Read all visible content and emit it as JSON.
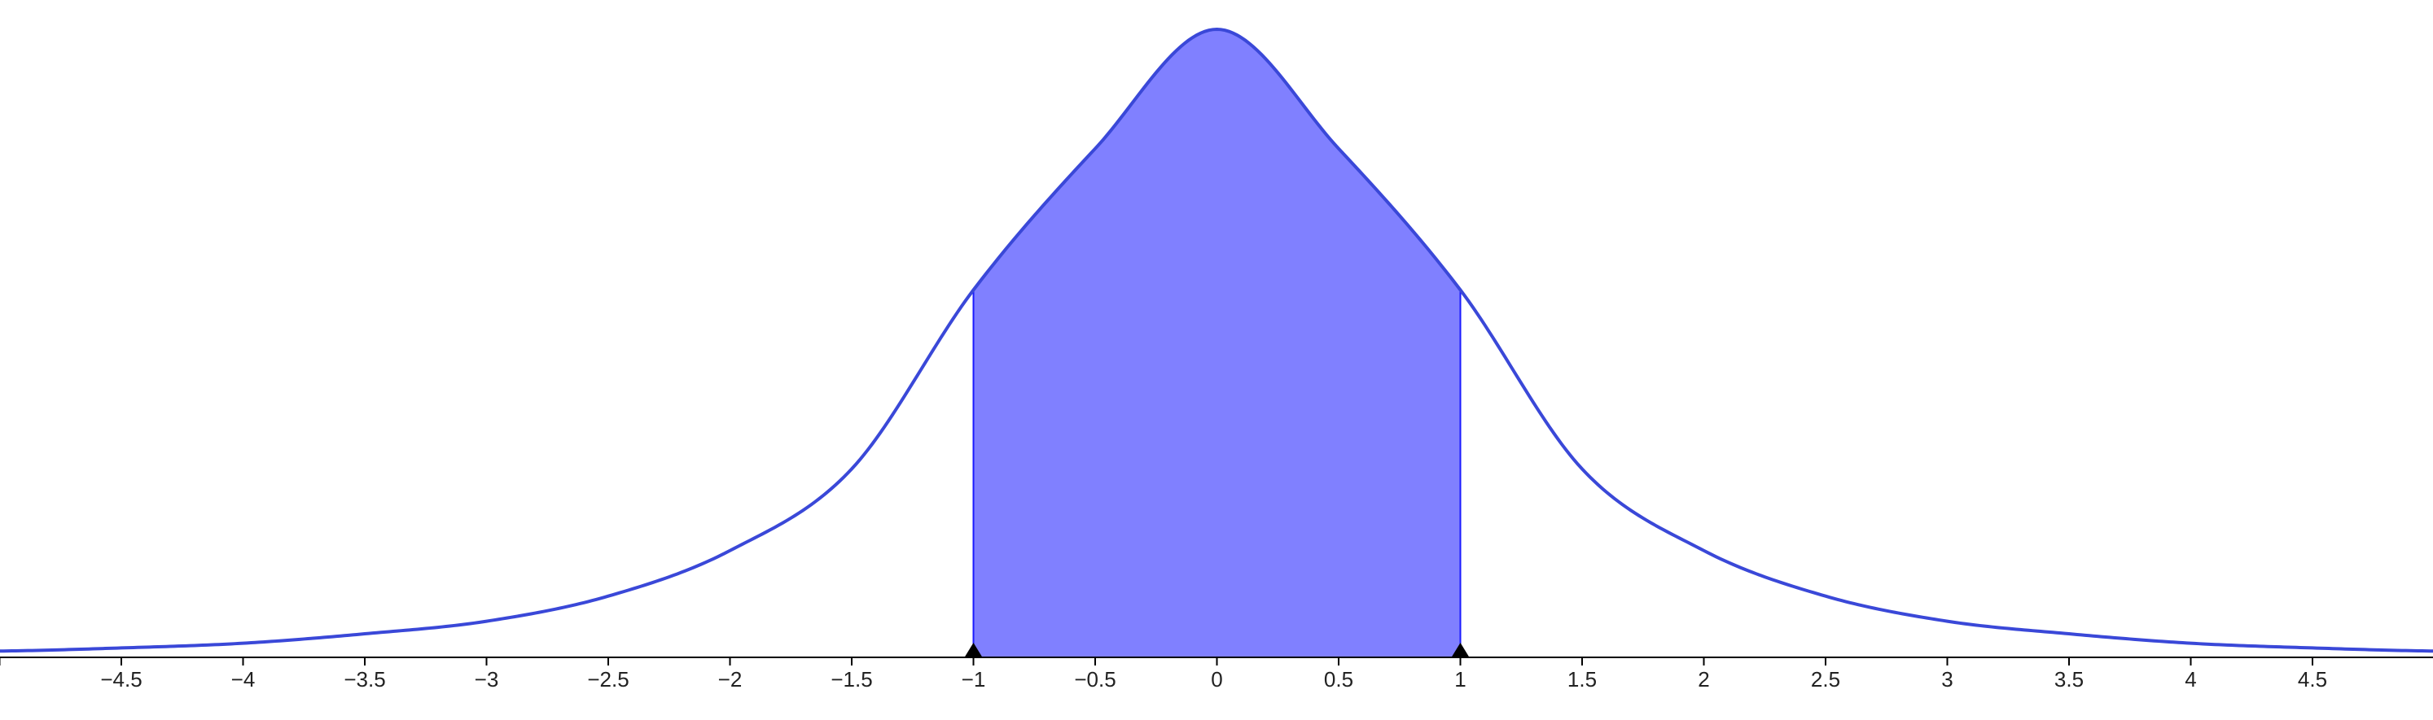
{
  "chart_data": {
    "type": "area",
    "xlim": [
      -5,
      5
    ],
    "ylim": [
      0,
      0.4
    ],
    "x_ticks": [
      -4.5,
      -4,
      -3.5,
      -3,
      -2.5,
      -2,
      -1.5,
      -1,
      -0.5,
      0,
      0.5,
      1,
      1.5,
      2,
      2.5,
      3,
      3.5,
      4,
      4.5
    ],
    "tick_labels": [
      "−4.5",
      "−4",
      "−3.5",
      "−3",
      "−2.5",
      "−2",
      "−1.5",
      "−1",
      "−0.5",
      "0",
      "0.5",
      "1",
      "1.5",
      "2",
      "2.5",
      "3",
      "3.5",
      "4",
      "4.5"
    ],
    "curve": {
      "x": [
        -5,
        -4.5,
        -4,
        -3.5,
        -3,
        -2.5,
        -2,
        -1.5,
        -1,
        -0.5,
        0,
        0.5,
        1,
        1.5,
        2,
        2.5,
        3,
        3.5,
        4,
        4.5,
        5
      ],
      "y": [
        0.004,
        0.006,
        0.009,
        0.015,
        0.023,
        0.039,
        0.068,
        0.12,
        0.234,
        0.324,
        0.4,
        0.324,
        0.234,
        0.12,
        0.068,
        0.039,
        0.023,
        0.015,
        0.009,
        0.006,
        0.004
      ]
    },
    "shaded_interval": [
      -1,
      1
    ],
    "markers_x": [
      -1,
      1
    ],
    "colors": {
      "curve": "#3a48d8",
      "fill": "#8080ff",
      "fill_edge": "#1a1aff",
      "axis": "#000000",
      "marker": "#000000"
    },
    "grid": false,
    "legend": "none"
  }
}
